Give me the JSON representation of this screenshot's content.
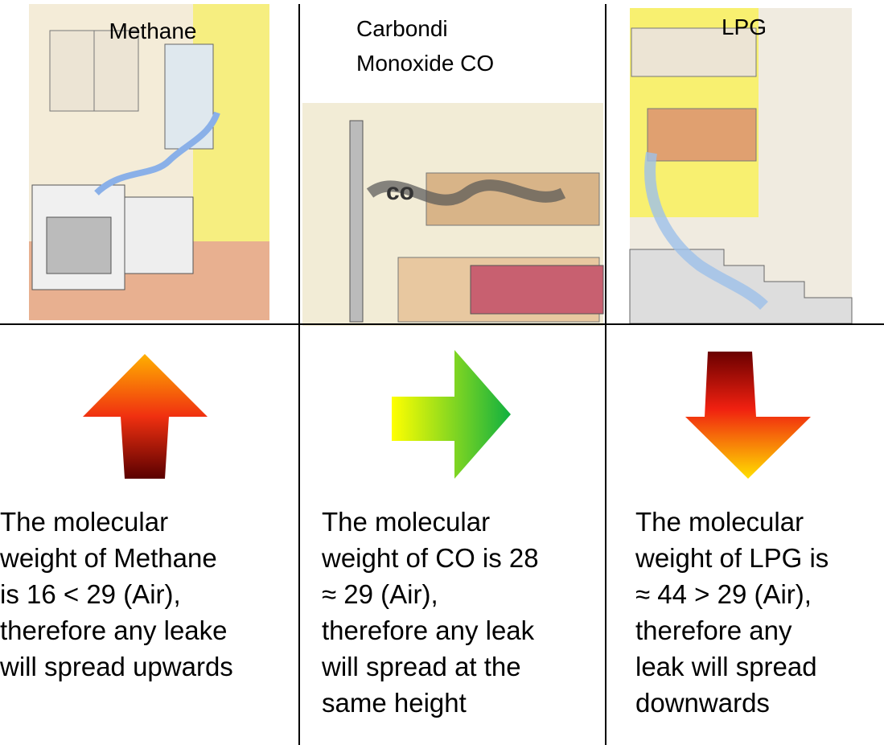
{
  "columns": [
    {
      "title": [
        "Methane"
      ],
      "description": [
        "The molecular",
        "weight of Methane",
        "is 16 < 29 (Air),",
        "therefore any leake",
        "will spread upwards"
      ]
    },
    {
      "title": [
        "Carbondi",
        "Monoxide CO"
      ],
      "description": [
        "The molecular",
        "weight of CO is 28",
        "≈ 29 (Air),",
        "therefore any leak",
        "will spread at the",
        "same height"
      ]
    },
    {
      "title": [
        "LPG"
      ],
      "description": [
        "The molecular",
        "weight of LPG is",
        "≈ 44 > 29 (Air),",
        "therefore any",
        "leak will spread",
        "downwards"
      ]
    }
  ]
}
